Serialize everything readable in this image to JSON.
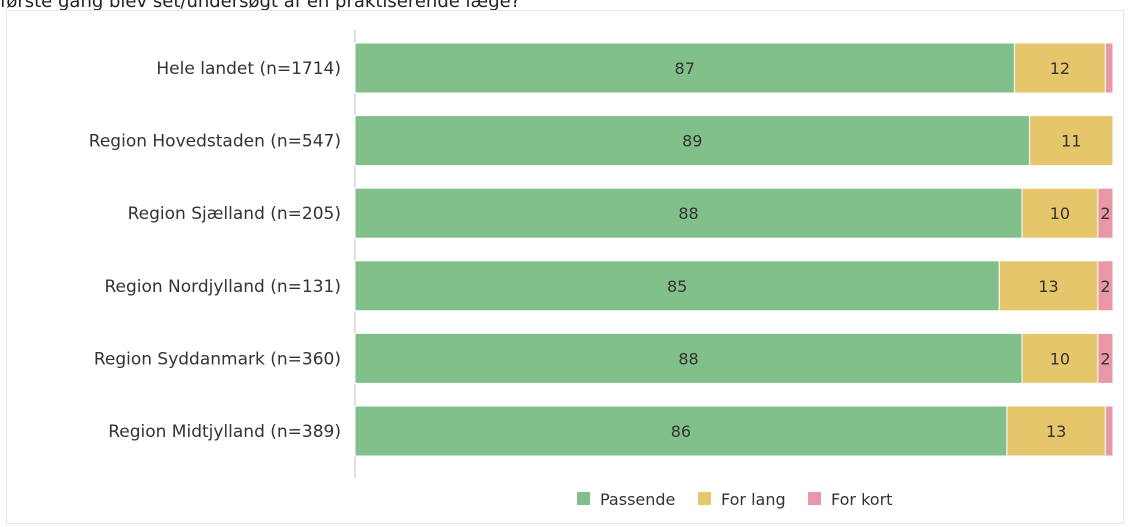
{
  "header": {
    "partial_question_text": "første gang blev set/undersøgt af en praktiserende læge?"
  },
  "chart_data": {
    "type": "bar",
    "orientation": "horizontal",
    "stacked": true,
    "percent_stacked": true,
    "categories": [
      "Hele landet (n=1714)",
      "Region Hovedstaden (n=547)",
      "Region Sjælland (n=205)",
      "Region Nordjylland (n=131)",
      "Region Syddanmark (n=360)",
      "Region Midtjylland (n=389)"
    ],
    "series": [
      {
        "name": "Passende",
        "color": "#82c08b",
        "values": [
          87,
          89,
          88,
          85,
          88,
          86
        ],
        "labels": [
          "87",
          "89",
          "88",
          "85",
          "88",
          "86"
        ]
      },
      {
        "name": "For lang",
        "color": "#e6c66a",
        "values": [
          12,
          11,
          10,
          13,
          10,
          13
        ],
        "labels": [
          "12",
          "11",
          "10",
          "13",
          "10",
          "13"
        ]
      },
      {
        "name": "For kort",
        "color": "#e897a6",
        "values": [
          1,
          0,
          2,
          2,
          2,
          1
        ],
        "labels": [
          "",
          "",
          "2",
          "2",
          "2",
          ""
        ]
      }
    ],
    "xlim": [
      0,
      100
    ],
    "grid": false,
    "legend_position": "bottom"
  }
}
